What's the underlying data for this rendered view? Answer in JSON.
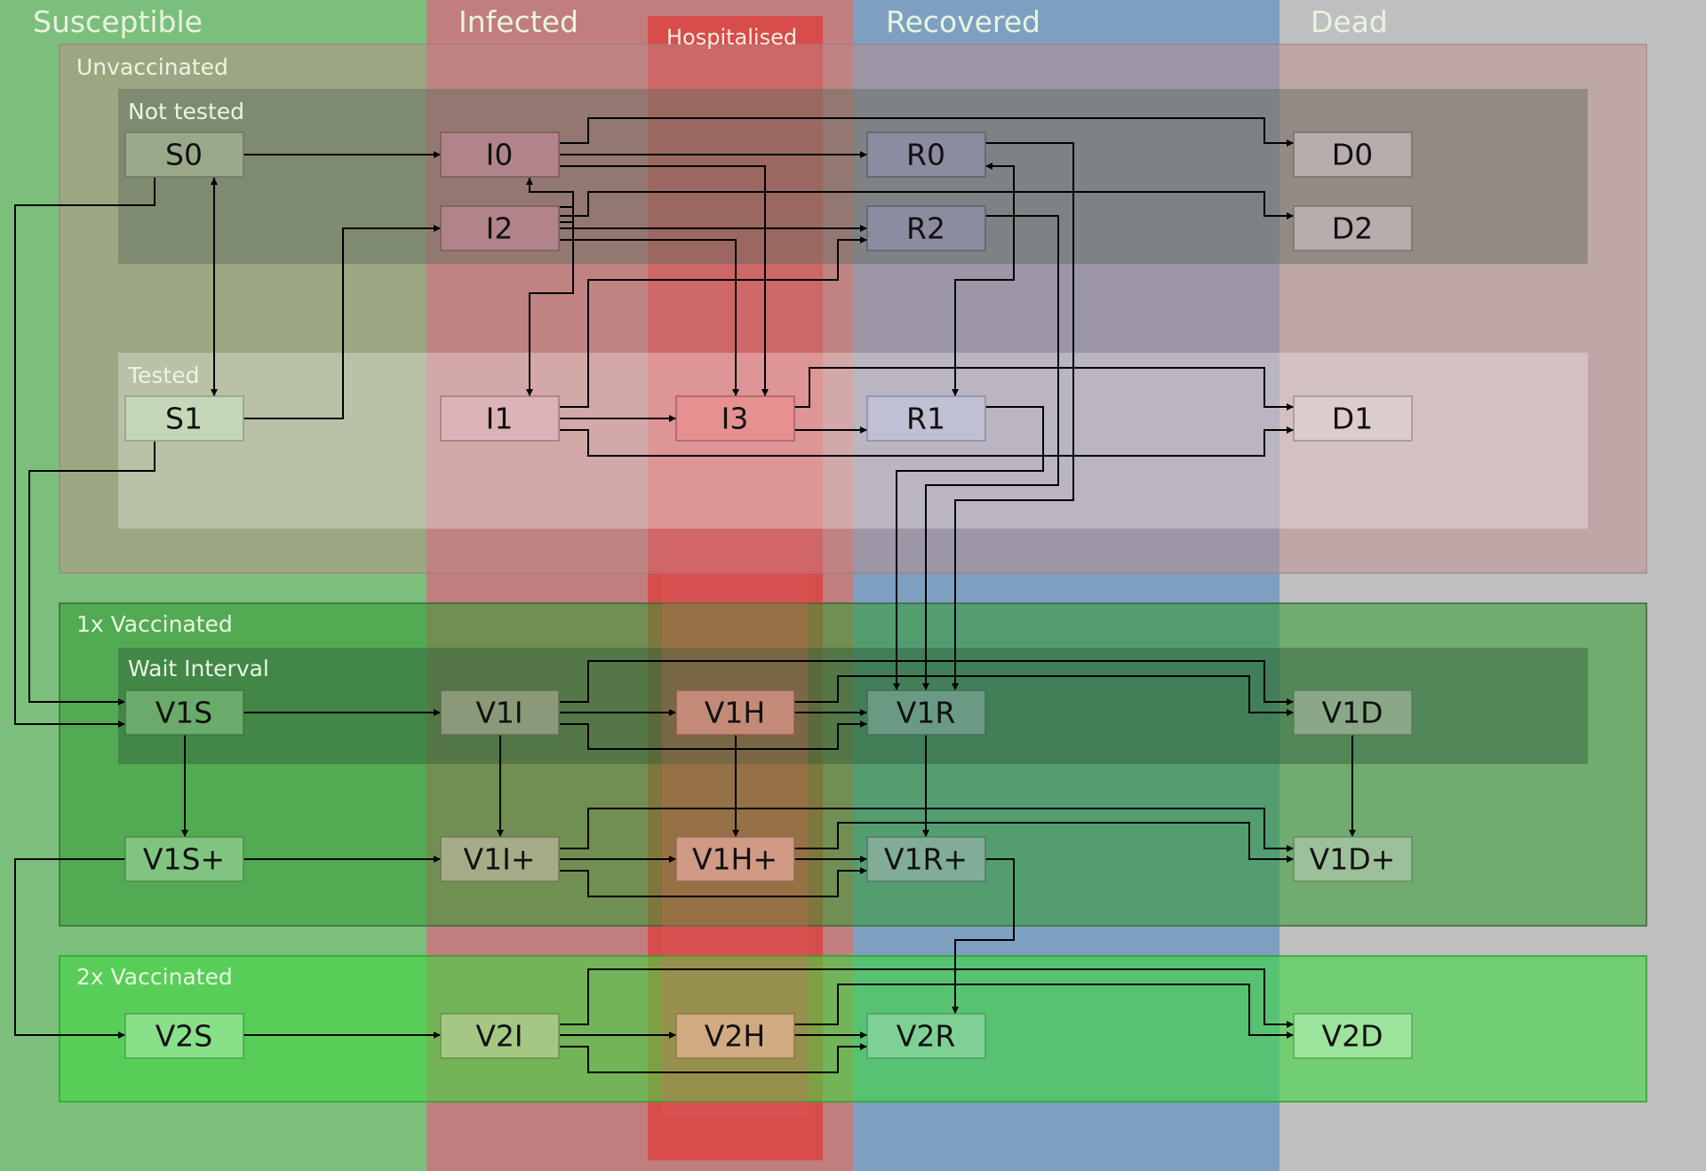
{
  "columns": {
    "susceptible": "Susceptible",
    "infected": "Infected",
    "hospitalised": "Hospitalised",
    "recovered": "Recovered",
    "dead": "Dead"
  },
  "groups": {
    "unvaccinated": "Unvaccinated",
    "not_tested": "Not tested",
    "tested": "Tested",
    "vacc1": "1x Vaccinated",
    "wait_interval": "Wait Interval",
    "vacc2": "2x Vaccinated"
  },
  "nodes": {
    "S0": "S0",
    "I0": "I0",
    "R0": "R0",
    "D0": "D0",
    "I2": "I2",
    "R2": "R2",
    "D2": "D2",
    "S1": "S1",
    "I1": "I1",
    "I3": "I3",
    "R1": "R1",
    "D1": "D1",
    "V1S": "V1S",
    "V1I": "V1I",
    "V1H": "V1H",
    "V1R": "V1R",
    "V1D": "V1D",
    "V1Sp": "V1S+",
    "V1Ip": "V1I+",
    "V1Hp": "V1H+",
    "V1Rp": "V1R+",
    "V1Dp": "V1D+",
    "V2S": "V2S",
    "V2I": "V2I",
    "V2H": "V2H",
    "V2R": "V2R",
    "V2D": "V2D"
  },
  "colors": {
    "susceptible": "#7cbf7c",
    "infected": "#c07e7e",
    "hospitalised": "#d94c4c",
    "recovered": "#7ea0c0",
    "dead": "#bfbfbf"
  }
}
